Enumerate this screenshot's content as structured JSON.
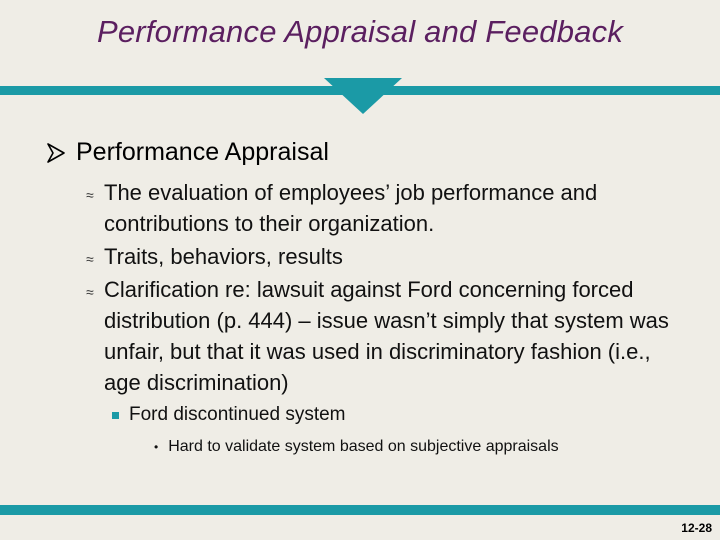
{
  "slide": {
    "title": "Performance Appraisal and Feedback",
    "heading": "Performance Appraisal",
    "points": [
      "The evaluation of employees’ job performance and contributions to their organization.",
      "Traits, behaviors, results",
      "Clarification re: lawsuit against Ford concerning forced distribution (p. 444) – issue wasn’t simply that system was unfair, but that it was used in discriminatory fashion (i.e., age discrimination)"
    ],
    "sub_point": "Ford discontinued system",
    "sub_sub_point": "Hard to validate system based on subjective appraisals",
    "page_number": "12-28"
  },
  "colors": {
    "title": "#5b1f60",
    "accent": "#1b9aa6",
    "background": "#efede6"
  },
  "icons": {
    "heading_bullet": "arrow-bullet-icon",
    "point_bullet": "approx-bullet-icon",
    "sub_point_bullet": "square-bullet-icon",
    "sub_sub_point_bullet": "dot-bullet-icon"
  }
}
